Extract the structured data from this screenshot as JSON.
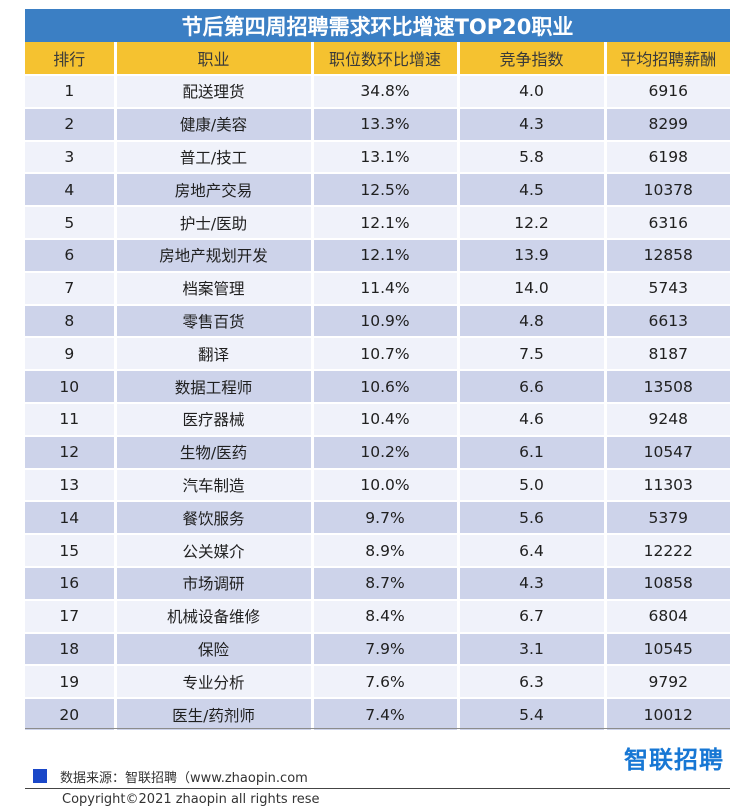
{
  "chart_data": {
    "type": "table",
    "title": "节后第四周招聘需求环比增速TOP20职业",
    "columns": [
      "排行",
      "职业",
      "职位数环比增速",
      "竞争指数",
      "平均招聘薪酬"
    ],
    "rows": [
      [
        "1",
        "配送理货",
        "34.8%",
        "4.0",
        "6916"
      ],
      [
        "2",
        "健康/美容",
        "13.3%",
        "4.3",
        "8299"
      ],
      [
        "3",
        "普工/技工",
        "13.1%",
        "5.8",
        "6198"
      ],
      [
        "4",
        "房地产交易",
        "12.5%",
        "4.5",
        "10378"
      ],
      [
        "5",
        "护士/医助",
        "12.1%",
        "12.2",
        "6316"
      ],
      [
        "6",
        "房地产规划开发",
        "12.1%",
        "13.9",
        "12858"
      ],
      [
        "7",
        "档案管理",
        "11.4%",
        "14.0",
        "5743"
      ],
      [
        "8",
        "零售百货",
        "10.9%",
        "4.8",
        "6613"
      ],
      [
        "9",
        "翻译",
        "10.7%",
        "7.5",
        "8187"
      ],
      [
        "10",
        "数据工程师",
        "10.6%",
        "6.6",
        "13508"
      ],
      [
        "11",
        "医疗器械",
        "10.4%",
        "4.6",
        "9248"
      ],
      [
        "12",
        "生物/医药",
        "10.2%",
        "6.1",
        "10547"
      ],
      [
        "13",
        "汽车制造",
        "10.0%",
        "5.0",
        "11303"
      ],
      [
        "14",
        "餐饮服务",
        "9.7%",
        "5.6",
        "5379"
      ],
      [
        "15",
        "公关媒介",
        "8.9%",
        "6.4",
        "12222"
      ],
      [
        "16",
        "市场调研",
        "8.7%",
        "4.3",
        "10858"
      ],
      [
        "17",
        "机械设备维修",
        "8.4%",
        "6.7",
        "6804"
      ],
      [
        "18",
        "保险",
        "7.9%",
        "3.1",
        "10545"
      ],
      [
        "19",
        "专业分析",
        "7.6%",
        "6.3",
        "9792"
      ],
      [
        "20",
        "医生/药剂师",
        "7.4%",
        "5.4",
        "10012"
      ]
    ]
  },
  "footer": {
    "logo": "智联招聘",
    "source": "数据来源：智联招聘（www.zhaopin.com",
    "copyright": "Copyright©2021 zhaopin all rights rese"
  },
  "colors": {
    "title_bg": "#3b7fc4",
    "header_bg": "#f5c230",
    "row_light": "#f0f2fa",
    "row_dark": "#cdd3ea",
    "logo": "#1777d4",
    "legend_square": "#1a47c8"
  }
}
